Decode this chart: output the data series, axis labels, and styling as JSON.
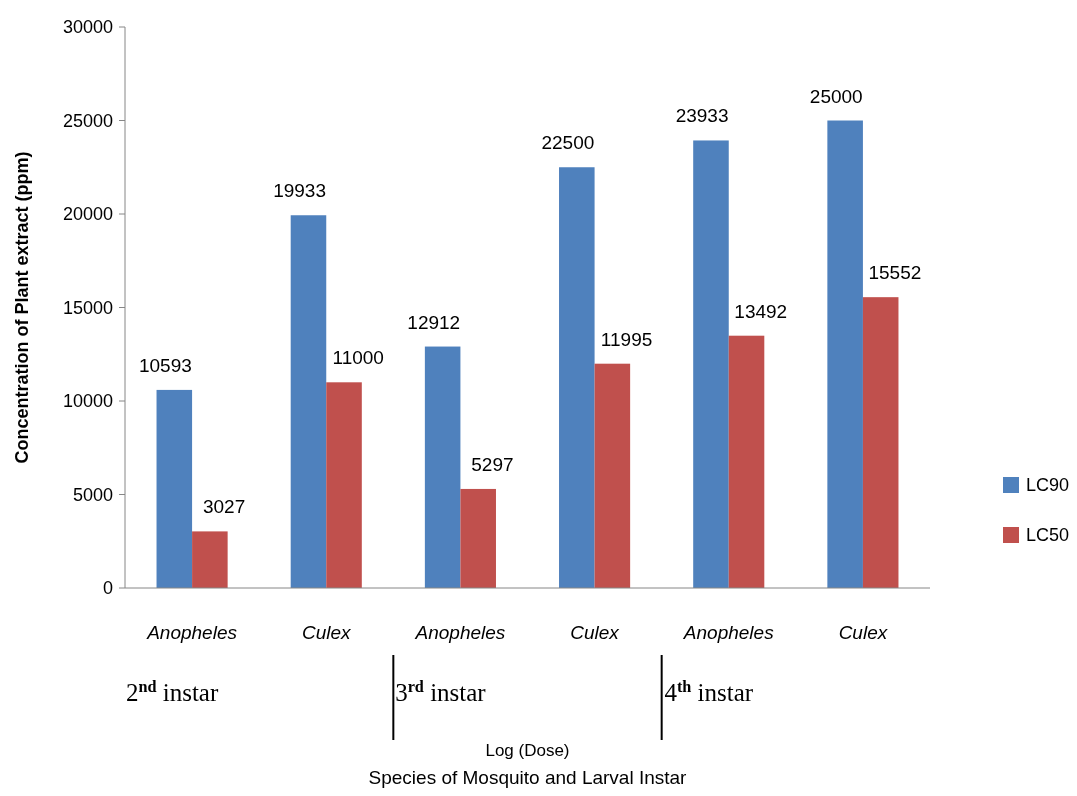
{
  "chart_data": {
    "type": "bar",
    "ylabel": "Concentration of Plant extract (ppm)",
    "categories": [
      "Anopheles",
      "Culex",
      "Anopheles",
      "Culex",
      "Anopheles",
      "Culex"
    ],
    "series": [
      {
        "name": "LC90",
        "color": "#4f81bd",
        "values": [
          10593,
          19933,
          12912,
          22500,
          23933,
          25000
        ]
      },
      {
        "name": "LC50",
        "color": "#c0504d",
        "values": [
          3027,
          11000,
          5297,
          11995,
          13492,
          15552
        ]
      }
    ],
    "ylim": [
      0,
      30000
    ],
    "yticks": [
      0,
      5000,
      10000,
      15000,
      20000,
      25000,
      30000
    ],
    "data_labels": true,
    "legend": "right",
    "grid": false,
    "annotations": [
      "2$^{nd}$ instar",
      "3$^{rd}$ instar",
      "4$^{th}$ instar",
      "Log (Dose)",
      "Species of Mosquito and Larval Instar"
    ]
  }
}
